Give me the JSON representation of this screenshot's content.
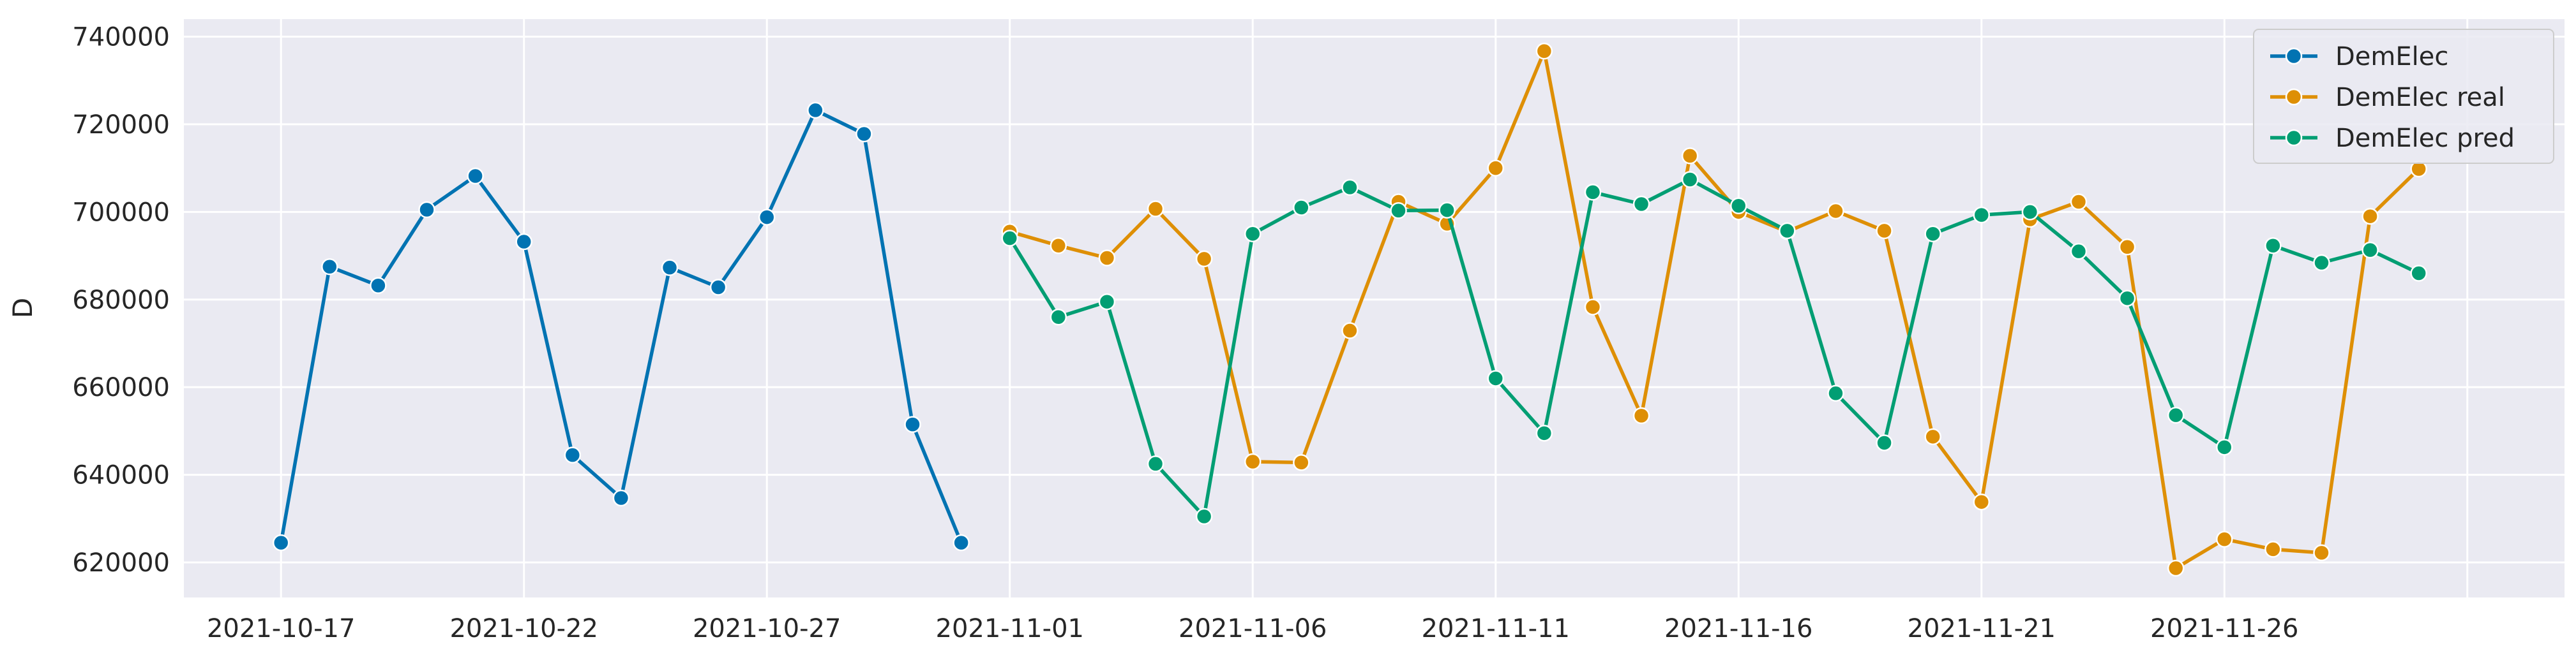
{
  "chart_data": {
    "type": "line",
    "title": "",
    "xlabel": "",
    "ylabel": "D",
    "ylim": [
      612000,
      744000
    ],
    "xlim": [
      "2021-10-15",
      "2021-12-03"
    ],
    "grid": true,
    "legend_position": "top-right",
    "x_ticks": [
      "2021-10-17",
      "2021-10-22",
      "2021-10-27",
      "2021-11-01",
      "2021-11-06",
      "2021-11-11",
      "2021-11-16",
      "2021-11-21",
      "2021-11-26",
      "2021-12-01"
    ],
    "x_tick_labels": [
      "2021-10-17",
      "2021-10-22",
      "2021-10-27",
      "2021-11-01",
      "2021-11-06",
      "2021-11-11",
      "2021-11-16",
      "2021-11-21",
      "2021-11-26",
      ""
    ],
    "y_ticks": [
      620000,
      640000,
      660000,
      680000,
      700000,
      720000,
      740000
    ],
    "y_tick_labels": [
      "620000",
      "640000",
      "660000",
      "680000",
      "700000",
      "720000",
      "740000"
    ],
    "series": [
      {
        "name": "DemElec",
        "color": "#0173b2",
        "x": [
          "2021-10-17",
          "2021-10-18",
          "2021-10-19",
          "2021-10-20",
          "2021-10-21",
          "2021-10-22",
          "2021-10-23",
          "2021-10-24",
          "2021-10-25",
          "2021-10-26",
          "2021-10-27",
          "2021-10-28",
          "2021-10-29",
          "2021-10-30",
          "2021-10-31"
        ],
        "values": [
          624500,
          687500,
          683200,
          700500,
          708200,
          693200,
          644500,
          634700,
          687300,
          682800,
          698800,
          723200,
          717800,
          651500,
          624500
        ]
      },
      {
        "name": "DemElec real",
        "color": "#de8f05",
        "x": [
          "2021-11-01",
          "2021-11-02",
          "2021-11-03",
          "2021-11-04",
          "2021-11-05",
          "2021-11-06",
          "2021-11-07",
          "2021-11-08",
          "2021-11-09",
          "2021-11-10",
          "2021-11-11",
          "2021-11-12",
          "2021-11-13",
          "2021-11-14",
          "2021-11-15",
          "2021-11-16",
          "2021-11-17",
          "2021-11-18",
          "2021-11-19",
          "2021-11-20",
          "2021-11-21",
          "2021-11-22",
          "2021-11-23",
          "2021-11-24",
          "2021-11-25",
          "2021-11-26",
          "2021-11-27",
          "2021-11-28",
          "2021-11-29",
          "2021-11-30"
        ],
        "values": [
          695500,
          692300,
          689500,
          700700,
          689300,
          643000,
          642800,
          672900,
          702300,
          697300,
          710000,
          736700,
          678300,
          653500,
          712800,
          700000,
          695500,
          700200,
          695700,
          648700,
          633800,
          698300,
          702300,
          692000,
          618700,
          625300,
          623000,
          622200,
          699000,
          709800
        ]
      },
      {
        "name": "DemElec pred",
        "color": "#029e73",
        "x": [
          "2021-11-01",
          "2021-11-02",
          "2021-11-03",
          "2021-11-04",
          "2021-11-05",
          "2021-11-06",
          "2021-11-07",
          "2021-11-08",
          "2021-11-09",
          "2021-11-10",
          "2021-11-11",
          "2021-11-12",
          "2021-11-13",
          "2021-11-14",
          "2021-11-15",
          "2021-11-16",
          "2021-11-17",
          "2021-11-18",
          "2021-11-19",
          "2021-11-20",
          "2021-11-21",
          "2021-11-22",
          "2021-11-23",
          "2021-11-24",
          "2021-11-25",
          "2021-11-26",
          "2021-11-27",
          "2021-11-28",
          "2021-11-29",
          "2021-11-30"
        ],
        "values": [
          694000,
          676000,
          679500,
          642500,
          630500,
          695000,
          701000,
          705600,
          700300,
          700400,
          662000,
          649500,
          704500,
          701800,
          707400,
          701400,
          695700,
          658600,
          647300,
          695000,
          699300,
          700000,
          691000,
          680300,
          653600,
          646300,
          692300,
          688400,
          691300,
          686000
        ]
      }
    ]
  }
}
